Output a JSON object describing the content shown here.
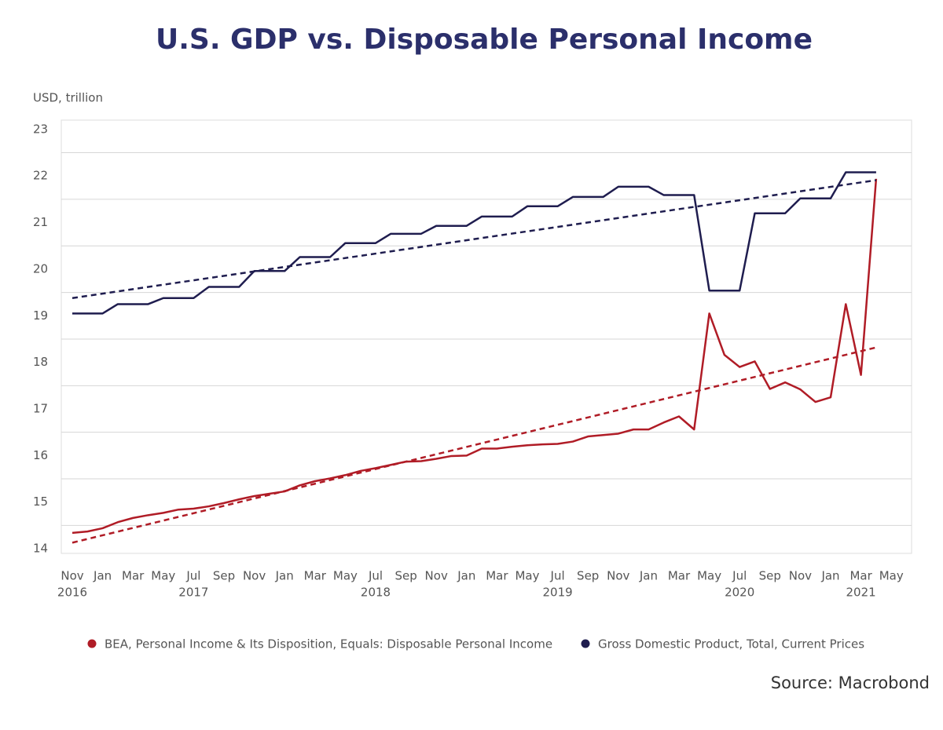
{
  "chart_data": {
    "type": "line",
    "title": "U.S. GDP vs. Disposable Personal Income",
    "y_axis_label": "USD, trillion",
    "source": "Source: Macrobond",
    "categories": [
      "Nov",
      null,
      "Jan",
      null,
      "Mar",
      null,
      "May",
      null,
      "Jul",
      null,
      "Sep",
      null,
      "Nov",
      null,
      "Jan",
      null,
      "Mar",
      null,
      "May",
      null,
      "Jul",
      null,
      "Sep",
      null,
      "Nov",
      null,
      "Jan",
      null,
      "Mar",
      null,
      "May",
      null,
      "Jul",
      null,
      "Sep",
      null,
      "Nov",
      null,
      "Jan",
      null,
      "Mar",
      null,
      "May",
      null,
      "Jul",
      null,
      "Sep",
      null,
      "Nov",
      null,
      "Jan",
      null,
      "Mar",
      null,
      "May"
    ],
    "years": [
      "2016",
      null,
      null,
      null,
      null,
      null,
      null,
      null,
      "2017",
      null,
      null,
      null,
      null,
      null,
      null,
      null,
      null,
      null,
      null,
      null,
      "2018",
      null,
      null,
      null,
      null,
      null,
      null,
      null,
      null,
      null,
      null,
      null,
      "2019",
      null,
      null,
      null,
      null,
      null,
      null,
      null,
      null,
      null,
      null,
      null,
      "2020",
      null,
      null,
      null,
      null,
      null,
      null,
      null,
      "2021",
      null,
      null
    ],
    "ylim": [
      13.9,
      23.2
    ],
    "yticks": [
      14,
      15,
      16,
      17,
      18,
      19,
      20,
      21,
      22,
      23
    ],
    "ygrid": [
      14.5,
      15.5,
      16.5,
      17.5,
      18.5,
      19.5,
      20.5,
      21.5,
      22.5
    ],
    "grid": true,
    "legend": "bottom",
    "series": [
      {
        "name": "BEA, Personal Income & Its Disposition, Equals: Disposable Personal Income",
        "color": "#b01c26",
        "values": [
          14.34,
          14.37,
          14.44,
          14.57,
          14.66,
          14.72,
          14.77,
          14.84,
          14.86,
          14.91,
          14.98,
          15.06,
          15.13,
          15.18,
          15.23,
          15.36,
          15.45,
          15.51,
          15.58,
          15.67,
          15.73,
          15.8,
          15.87,
          15.88,
          15.93,
          15.99,
          16.0,
          16.15,
          16.15,
          16.19,
          16.22,
          16.24,
          16.25,
          16.3,
          16.41,
          16.44,
          16.47,
          16.56,
          16.56,
          16.71,
          16.84,
          16.56,
          19.05,
          18.16,
          17.9,
          18.02,
          17.43,
          17.57,
          17.42,
          17.15,
          17.25,
          19.25,
          17.73,
          21.94,
          null
        ],
        "trend": [
          14.13,
          18.32
        ]
      },
      {
        "name": "Gross Domestic Product, Total, Current Prices",
        "color": "#1f1d4f",
        "values": [
          19.05,
          19.05,
          19.05,
          19.25,
          19.25,
          19.25,
          19.38,
          19.38,
          19.38,
          19.62,
          19.62,
          19.62,
          19.96,
          19.96,
          19.96,
          20.26,
          20.26,
          20.26,
          20.56,
          20.56,
          20.56,
          20.76,
          20.76,
          20.76,
          20.93,
          20.93,
          20.93,
          21.13,
          21.13,
          21.13,
          21.35,
          21.35,
          21.35,
          21.55,
          21.55,
          21.55,
          21.77,
          21.77,
          21.77,
          21.59,
          21.59,
          21.59,
          19.54,
          19.54,
          19.54,
          21.2,
          21.2,
          21.2,
          21.52,
          21.52,
          21.52,
          22.08,
          22.08,
          22.08,
          null
        ],
        "trend": [
          19.38,
          21.91
        ]
      }
    ]
  }
}
